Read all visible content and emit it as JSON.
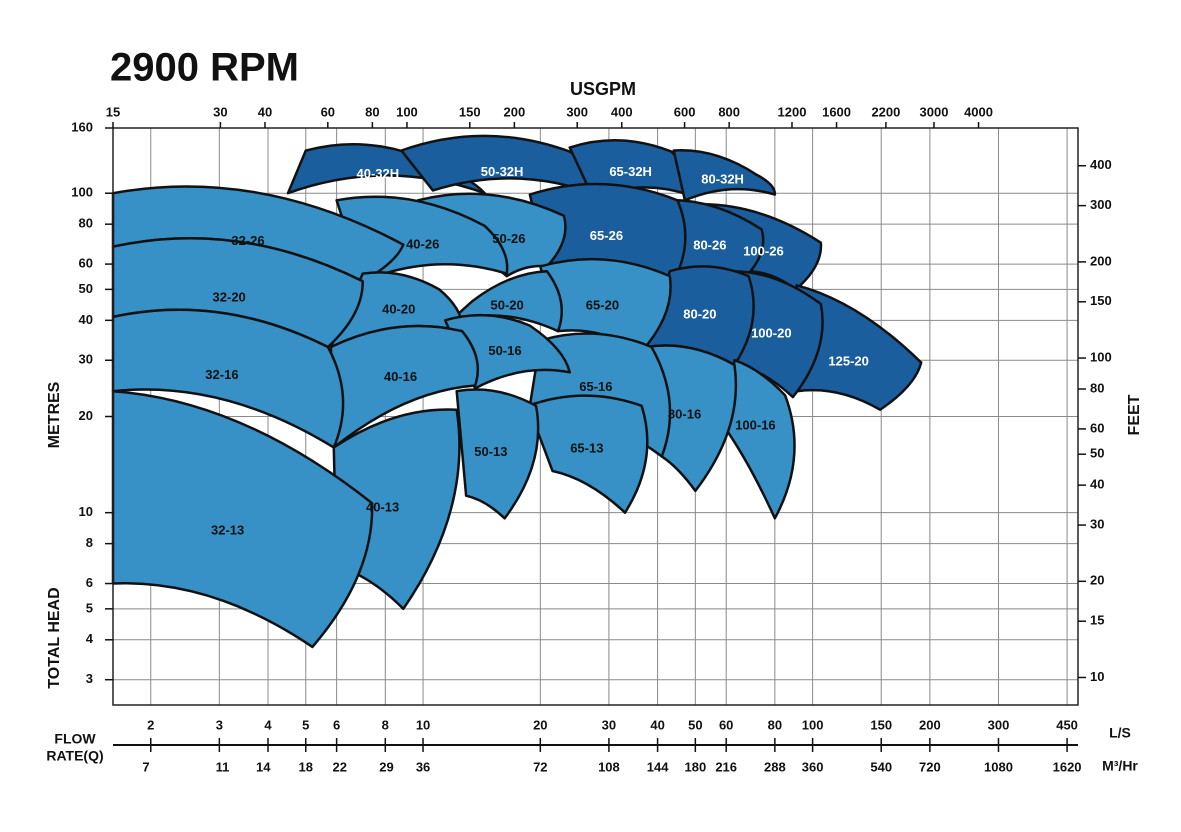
{
  "chart_data": {
    "type": "region",
    "title": "2900 RPM",
    "x3_label": "USGPM",
    "y_label": [
      "TOTAL HEAD",
      "METRES"
    ],
    "y2_label": "FEET",
    "x_label": [
      "FLOW",
      "RATE(Q)"
    ],
    "x_unit": "L/S",
    "x2_unit": "M³/Hr",
    "log_scale": true,
    "grid": true,
    "xlim": [
      1.6,
      480
    ],
    "xticks": [
      2,
      3,
      4,
      5,
      6,
      8,
      10,
      20,
      30,
      40,
      50,
      60,
      80,
      100,
      150,
      200,
      300,
      450
    ],
    "x2lim": [
      5.76,
      1728
    ],
    "x2ticks": [
      7,
      11,
      14,
      18,
      22,
      29,
      36,
      72,
      108,
      144,
      180,
      216,
      288,
      360,
      540,
      720,
      1080,
      1620
    ],
    "x3lim": [
      15,
      7600
    ],
    "x3ticks": [
      15,
      30,
      40,
      60,
      80,
      100,
      150,
      200,
      300,
      400,
      600,
      800,
      1200,
      1600,
      2200,
      3000,
      4000
    ],
    "ylim": [
      2.5,
      160
    ],
    "yticks": [
      3,
      4,
      5,
      6,
      8,
      10,
      20,
      30,
      40,
      50,
      60,
      80,
      100,
      160
    ],
    "y2lim": [
      8.2,
      525
    ],
    "y2ticks": [
      10,
      15,
      20,
      30,
      40,
      50,
      60,
      80,
      100,
      150,
      200,
      300,
      400
    ],
    "regions": [
      {
        "name": "40-32H",
        "color": "#1b5e9e",
        "x": [
          5.0,
          10.6,
          14.4,
          4.5
        ],
        "y": [
          136,
          125,
          100,
          100
        ]
      },
      {
        "name": "50-32H",
        "color": "#1b5e9e",
        "x": [
          8.8,
          23.8,
          29.2,
          10.6
        ],
        "y": [
          136,
          135,
          97,
          102
        ]
      },
      {
        "name": "65-32H",
        "color": "#1b5e9e",
        "x": [
          23.8,
          43.4,
          48,
          27.3
        ],
        "y": [
          139,
          135,
          99,
          97
        ]
      },
      {
        "name": "80-32H",
        "color": "#1b5e9e",
        "x": [
          44,
          72,
          80,
          47
        ],
        "y": [
          136,
          114,
          99,
          95
        ]
      },
      {
        "name": "100-26",
        "color": "#1b5e9e",
        "x": [
          48,
          105,
          90.6,
          68.5
        ],
        "y": [
          92,
          70,
          50,
          57
        ]
      },
      {
        "name": "80-26",
        "color": "#1b5e9e",
        "x": [
          41,
          74,
          67.5,
          43
        ],
        "y": [
          95,
          77,
          55,
          54
        ]
      },
      {
        "name": "65-26",
        "color": "#1b5e9e",
        "x": [
          18.8,
          45,
          43.4,
          20.8
        ],
        "y": [
          99,
          95,
          51.5,
          59
        ]
      },
      {
        "name": "50-26",
        "color": "#3791c6",
        "x": [
          9.7,
          23,
          20.8,
          16.4
        ],
        "y": [
          95,
          85,
          59,
          55
        ]
      },
      {
        "name": "40-26",
        "color": "#3791c6",
        "x": [
          6,
          14.4,
          16.4,
          7.0
        ],
        "y": [
          95,
          79,
          56,
          53
        ]
      },
      {
        "name": "32-26",
        "color": "#3791c6",
        "x": [
          1.6,
          8.9,
          7.0,
          1.6
        ],
        "y": [
          100,
          69,
          53,
          68
        ]
      },
      {
        "name": "125-20",
        "color": "#1b5e9e",
        "x": [
          91,
          190,
          149,
          91
        ],
        "y": [
          51.5,
          29.5,
          21,
          24
        ]
      },
      {
        "name": "100-20",
        "color": "#1b5e9e",
        "x": [
          63,
          105,
          89,
          64
        ],
        "y": [
          57,
          45,
          23,
          29
        ]
      },
      {
        "name": "80-20",
        "color": "#1b5e9e",
        "x": [
          43,
          68.5,
          63,
          37.5
        ],
        "y": [
          57,
          55,
          29,
          33
        ]
      },
      {
        "name": "65-20",
        "color": "#3791c6",
        "x": [
          20,
          43,
          36.4,
          22.2
        ],
        "y": [
          59,
          55,
          32,
          37
        ]
      },
      {
        "name": "50-20",
        "color": "#3791c6",
        "x": [
          13.4,
          20.8,
          22.2,
          11.8
        ],
        "y": [
          46,
          57,
          37,
          40
        ]
      },
      {
        "name": "40-20",
        "color": "#3791c6",
        "x": [
          7.0,
          11.0,
          12.6,
          5.8
        ],
        "y": [
          56,
          50,
          37,
          33
        ]
      },
      {
        "name": "32-20",
        "color": "#3791c6",
        "x": [
          1.6,
          7.0,
          5.7,
          1.6
        ],
        "y": [
          68,
          53,
          33,
          41
        ]
      },
      {
        "name": "100-16",
        "color": "#3791c6",
        "x": [
          63,
          85,
          80,
          60.4
        ],
        "y": [
          30,
          23.3,
          9.6,
          18
        ]
      },
      {
        "name": "80-16",
        "color": "#3791c6",
        "x": [
          37.5,
          63,
          50,
          41
        ],
        "y": [
          33,
          29,
          11.7,
          15
        ]
      },
      {
        "name": "65-16",
        "color": "#3791c6",
        "x": [
          20,
          38.6,
          41,
          18.8
        ],
        "y": [
          34.6,
          33,
          15,
          21.6
        ]
      },
      {
        "name": "50-16",
        "color": "#3791c6",
        "x": [
          11.4,
          18.8,
          23.8,
          13.6
        ],
        "y": [
          40,
          38.5,
          27.5,
          24.5
        ]
      },
      {
        "name": "40-16",
        "color": "#3791c6",
        "x": [
          5.8,
          12.6,
          13.6,
          5.9
        ],
        "y": [
          33,
          37,
          25,
          16
        ]
      },
      {
        "name": "32-16",
        "color": "#3791c6",
        "x": [
          1.6,
          5.7,
          5.9,
          1.6
        ],
        "y": [
          41,
          33,
          16,
          24
        ]
      },
      {
        "name": "65-13",
        "color": "#3791c6",
        "x": [
          18.6,
          36.4,
          33,
          21.5
        ],
        "y": [
          21.6,
          21.6,
          10,
          13.5
        ]
      },
      {
        "name": "50-13",
        "color": "#3791c6",
        "x": [
          12.2,
          19.5,
          16.2,
          12.9
        ],
        "y": [
          24,
          21.6,
          9.6,
          11.3
        ]
      },
      {
        "name": "40-13",
        "color": "#3791c6",
        "x": [
          5.9,
          12.2,
          8.9,
          6.0
        ],
        "y": [
          16,
          21,
          5.0,
          6.8
        ]
      },
      {
        "name": "32-13",
        "color": "#3791c6",
        "x": [
          1.6,
          7.4,
          5.2,
          1.6
        ],
        "y": [
          24,
          10.7,
          3.8,
          6
        ]
      }
    ]
  }
}
